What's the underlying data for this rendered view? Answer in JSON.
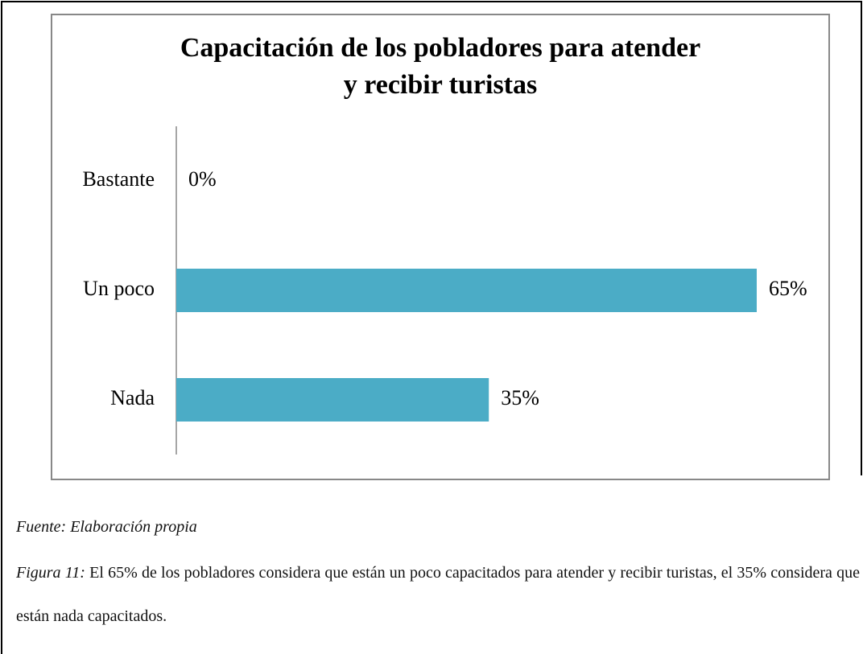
{
  "chart_data": {
    "type": "bar",
    "orientation": "horizontal",
    "title": "Capacitación de los pobladores para atender y recibir turistas",
    "categories": [
      "Bastante",
      "Un poco",
      "Nada"
    ],
    "values": [
      0,
      65,
      35
    ],
    "value_labels": [
      "0%",
      "65%",
      "35%"
    ],
    "color": "#4bacc6"
  },
  "source": "Fuente: Elaboración propia",
  "caption": {
    "label": "Figura 11:",
    "text": "El 65% de los pobladores considera que están un poco capacitados para atender y recibir turistas, el 35% considera que están nada capacitados."
  }
}
